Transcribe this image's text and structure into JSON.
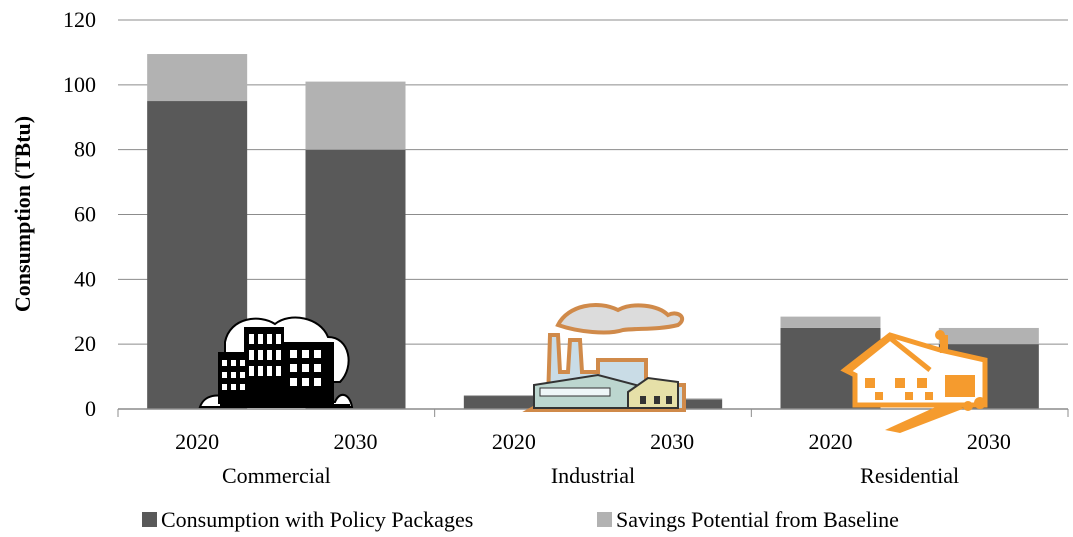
{
  "chart_data": {
    "type": "bar",
    "stacked": true,
    "ylabel": "Consumption (TBtu)",
    "ylim": [
      0,
      120
    ],
    "y_ticks": [
      "0",
      "20",
      "40",
      "60",
      "80",
      "100",
      "120"
    ],
    "grid": true,
    "legend_position": "bottom",
    "groups": [
      {
        "label": "Commercial",
        "icon": "office-buildings-icon",
        "categories": [
          "2020",
          "2030"
        ]
      },
      {
        "label": "Industrial",
        "icon": "factory-icon",
        "categories": [
          "2020",
          "2030"
        ]
      },
      {
        "label": "Residential",
        "icon": "house-icon",
        "categories": [
          "2020",
          "2030"
        ]
      }
    ],
    "series": [
      {
        "name": "Consumption with Policy Packages",
        "color": "#595959",
        "values": [
          95,
          80,
          4,
          3,
          25,
          20
        ]
      },
      {
        "name": "Savings Potential from Baseline",
        "color": "#b2b2b2",
        "values": [
          14.5,
          21,
          0.3,
          0.3,
          3.5,
          5
        ]
      }
    ]
  }
}
